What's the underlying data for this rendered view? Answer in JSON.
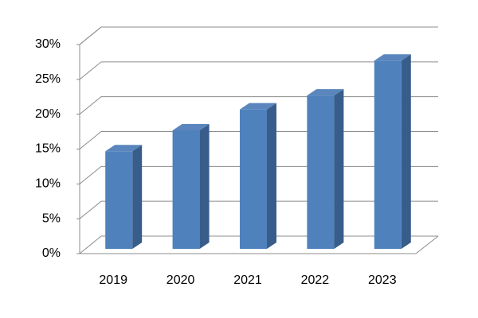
{
  "chart_data": {
    "type": "bar3d",
    "categories": [
      "2019",
      "2020",
      "2021",
      "2022",
      "2023"
    ],
    "values": [
      14,
      17,
      20,
      22,
      27
    ],
    "color": "#4f81bd",
    "ylim": [
      0,
      30
    ],
    "yticks": [
      {
        "value": 0,
        "label": "0%"
      },
      {
        "value": 5,
        "label": "5%"
      },
      {
        "value": 10,
        "label": "10%"
      },
      {
        "value": 15,
        "label": "15%"
      },
      {
        "value": 20,
        "label": "20%"
      },
      {
        "value": 25,
        "label": "25%"
      },
      {
        "value": 30,
        "label": "30%"
      }
    ],
    "grid": true
  }
}
